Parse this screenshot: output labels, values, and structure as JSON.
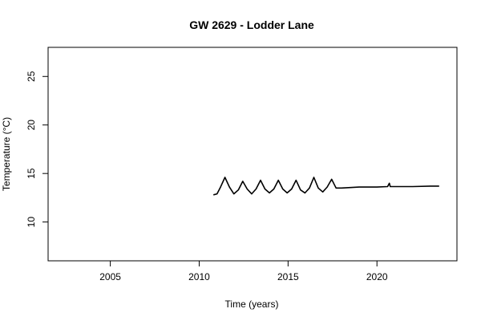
{
  "chart_data": {
    "type": "line",
    "title": "GW 2629 - Lodder Lane",
    "xlabel": "Time (years)",
    "ylabel": "Temperature (°C)",
    "xlim": [
      2001.5,
      2024.5
    ],
    "ylim": [
      6,
      28
    ],
    "xticks": [
      2005,
      2010,
      2015,
      2020
    ],
    "yticks": [
      10,
      15,
      20,
      25
    ],
    "grid": false,
    "legend": "none",
    "series": [
      {
        "color": "#000000",
        "x": [
          2010.8,
          2011.0,
          2011.2,
          2011.45,
          2011.7,
          2011.95,
          2012.2,
          2012.45,
          2012.7,
          2012.95,
          2013.2,
          2013.45,
          2013.7,
          2013.95,
          2014.2,
          2014.45,
          2014.7,
          2014.95,
          2015.2,
          2015.45,
          2015.7,
          2015.95,
          2016.2,
          2016.45,
          2016.7,
          2016.95,
          2017.2,
          2017.45,
          2017.7,
          2018.0,
          2019.0,
          2020.0,
          2020.6,
          2020.7,
          2020.75,
          2020.8,
          2021.0,
          2022.0,
          2023.0,
          2023.5
        ],
        "y": [
          12.8,
          12.9,
          13.6,
          14.6,
          13.6,
          12.9,
          13.3,
          14.2,
          13.4,
          12.9,
          13.4,
          14.3,
          13.4,
          13.0,
          13.4,
          14.3,
          13.4,
          13.0,
          13.4,
          14.3,
          13.3,
          13.0,
          13.5,
          14.6,
          13.5,
          13.1,
          13.6,
          14.4,
          13.5,
          13.5,
          13.6,
          13.6,
          13.65,
          14.0,
          13.65,
          13.65,
          13.65,
          13.65,
          13.7,
          13.7
        ]
      }
    ]
  }
}
